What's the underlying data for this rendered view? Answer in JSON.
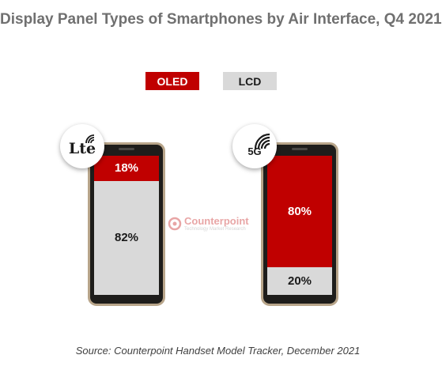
{
  "title": "Display Panel Types of Smartphones by Air Interface, Q4 2021",
  "source": "Source: Counterpoint Handset Model Tracker, December 2021",
  "watermark": {
    "name": "Counterpoint",
    "subtitle": "Technology Market Research"
  },
  "colors": {
    "oled": "#c00000",
    "lcd": "#d9d9d9"
  },
  "chart_data": {
    "type": "bar",
    "title": "Display Panel Types of Smartphones by Air Interface, Q4 2021",
    "categories": [
      "Lte",
      "5G"
    ],
    "series": [
      {
        "name": "OLED",
        "values": [
          18,
          80
        ],
        "labels": [
          "18%",
          "80%"
        ],
        "color": "#c00000"
      },
      {
        "name": "LCD",
        "values": [
          82,
          20
        ],
        "labels": [
          "82%",
          "20%"
        ],
        "color": "#d9d9d9"
      }
    ],
    "ylim": [
      0,
      100
    ],
    "stacked": true,
    "legend": "top-center"
  }
}
